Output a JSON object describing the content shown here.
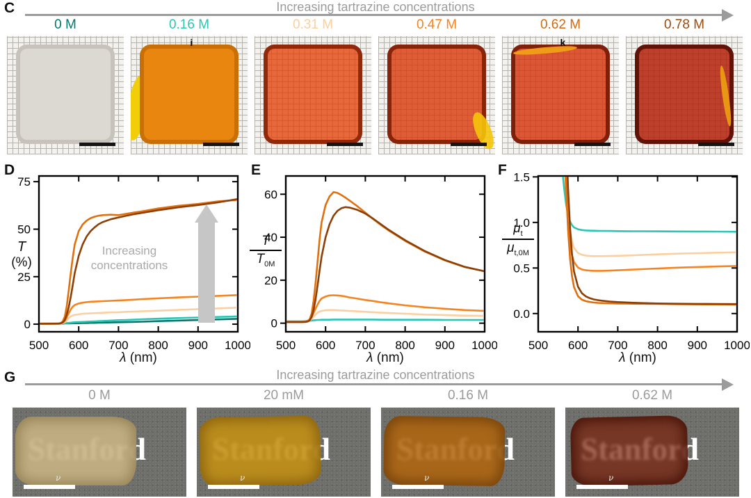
{
  "panel_c": {
    "label": "C",
    "arrow_title": "Increasing tartrazine concentrations",
    "samples": [
      {
        "conc": "0 M",
        "color": "#00786d",
        "fill": "#dcd8d2",
        "edge": "#c7c3bc",
        "mark": "",
        "blob": ""
      },
      {
        "conc": "0.16 M",
        "color": "#2cc4b4",
        "fill": "#e8860f",
        "edge": "#c96f08",
        "mark": "i",
        "blob": "#f2cd0a"
      },
      {
        "conc": "0.31 M",
        "color": "#fbcfa0",
        "fill": "rgba(225,65,8,0.78)",
        "edge": "rgba(130,30,2,0.85)",
        "mark": "",
        "blob": ""
      },
      {
        "conc": "0.47 M",
        "color": "#f5831f",
        "fill": "rgba(218,55,8,0.80)",
        "edge": "rgba(120,26,2,0.85)",
        "mark": "",
        "blob": "#f5c50a"
      },
      {
        "conc": "0.62 M",
        "color": "#d2690f",
        "fill": "rgba(214,48,8,0.80)",
        "edge": "rgba(110,22,2,0.85)",
        "mark": "k",
        "blob": "#f0a018"
      },
      {
        "conc": "0.78 M",
        "color": "#9c4a0e",
        "fill": "rgba(178,30,6,0.84)",
        "edge": "rgba(85,14,2,0.90)",
        "mark": "",
        "blob": "#eb9b12"
      }
    ]
  },
  "chart_data": [
    {
      "id": "D",
      "type": "line",
      "panel_label": "D",
      "xlabel_sym": "λ",
      "xlabel_unit": " (nm)",
      "ylabel_line1": "T",
      "ylabel_line2": "(%)",
      "annotation": "Increasing concentrations",
      "xlim": [
        500,
        1000
      ],
      "ylim": [
        -4,
        78
      ],
      "xticks": [
        {
          "v": 500,
          "t": "500"
        },
        {
          "v": 600,
          "t": "600"
        },
        {
          "v": 700,
          "t": "700"
        },
        {
          "v": 800,
          "t": "800"
        },
        {
          "v": 900,
          "t": "900"
        },
        {
          "v": 1000,
          "t": "1000"
        }
      ],
      "yticks": [
        {
          "v": 0,
          "t": "0"
        },
        {
          "v": 25,
          "t": "25"
        },
        {
          "v": 50,
          "t": "50"
        },
        {
          "v": 75,
          "t": "75"
        }
      ],
      "x": [
        500,
        540,
        550,
        555,
        560,
        565,
        570,
        575,
        580,
        585,
        590,
        600,
        610,
        620,
        630,
        640,
        650,
        660,
        680,
        700,
        720,
        740,
        760,
        800,
        850,
        900,
        950,
        1000
      ],
      "series": [
        {
          "name": "0 M",
          "color": "#00786d",
          "y": [
            0.3,
            0.3,
            0.3,
            0.3,
            0.3,
            0.4,
            0.4,
            0.4,
            0.4,
            0.5,
            0.5,
            0.5,
            0.6,
            0.6,
            0.7,
            0.7,
            0.8,
            0.8,
            0.9,
            1.0,
            1.1,
            1.2,
            1.3,
            1.6,
            1.9,
            2.2,
            2.5,
            2.8
          ]
        },
        {
          "name": "0.16 M",
          "color": "#2cc4b4",
          "y": [
            0.4,
            0.4,
            0.4,
            0.5,
            0.5,
            0.6,
            0.6,
            0.7,
            0.8,
            0.9,
            1.0,
            1.1,
            1.2,
            1.3,
            1.4,
            1.5,
            1.6,
            1.7,
            1.9,
            2.1,
            2.2,
            2.4,
            2.6,
            2.9,
            3.2,
            3.5,
            3.8,
            4.1
          ]
        },
        {
          "name": "0.31 M",
          "color": "#fbcfa0",
          "y": [
            0.2,
            0.2,
            0.3,
            0.3,
            0.5,
            1.0,
            2.0,
            3.2,
            4.1,
            4.6,
            4.9,
            5.2,
            5.5,
            5.6,
            5.7,
            5.8,
            5.9,
            6.0,
            6.2,
            6.3,
            6.5,
            6.6,
            6.8,
            7.1,
            7.5,
            7.9,
            8.3,
            8.7
          ]
        },
        {
          "name": "0.47 M",
          "color": "#f5831f",
          "y": [
            0.2,
            0.3,
            0.3,
            0.4,
            0.8,
            1.8,
            3.6,
            5.8,
            7.8,
            9.2,
            10.1,
            10.9,
            11.3,
            11.6,
            11.8,
            11.9,
            12.0,
            12.1,
            12.3,
            12.5,
            12.7,
            12.9,
            13.2,
            13.6,
            14.1,
            14.5,
            14.9,
            15.3
          ]
        },
        {
          "name": "0.62 M",
          "color": "#e0700e",
          "y": [
            0.2,
            0.3,
            0.4,
            0.6,
            1.5,
            4.0,
            9.5,
            18,
            27,
            35,
            42,
            49,
            52.5,
            54.5,
            55.8,
            56.6,
            57.1,
            57.4,
            57.6,
            57.4,
            58.1,
            58.8,
            59.4,
            60.9,
            62.3,
            63.3,
            64.6,
            65.4
          ]
        },
        {
          "name": "0.78 M",
          "color": "#8e3f05",
          "y": [
            0.2,
            0.3,
            0.3,
            0.5,
            0.9,
            2.2,
            5.0,
            9.0,
            14.5,
            20.5,
            27,
            36,
            42,
            46.2,
            49,
            51,
            52.6,
            53.7,
            55.2,
            56.2,
            57.1,
            57.9,
            58.6,
            60.0,
            61.5,
            62.7,
            64.1,
            65.9
          ]
        }
      ]
    },
    {
      "id": "E",
      "type": "line",
      "panel_label": "E",
      "xlabel_sym": "λ",
      "xlabel_unit": " (nm)",
      "ylabel_num": "T",
      "ylabel_num_sub": "",
      "ylabel_den": "T",
      "ylabel_den_sub": "0M",
      "xlim": [
        500,
        1000
      ],
      "ylim": [
        -4,
        68.5
      ],
      "xticks": [
        {
          "v": 500,
          "t": "500"
        },
        {
          "v": 600,
          "t": "600"
        },
        {
          "v": 700,
          "t": "700"
        },
        {
          "v": 800,
          "t": "800"
        },
        {
          "v": 900,
          "t": "900"
        },
        {
          "v": 1000,
          "t": "1000"
        }
      ],
      "yticks": [
        {
          "v": 0,
          "t": "0"
        },
        {
          "v": 20,
          "t": "20"
        },
        {
          "v": 40,
          "t": "40"
        },
        {
          "v": 60,
          "t": "60"
        }
      ],
      "x": [
        500,
        540,
        550,
        555,
        560,
        565,
        570,
        575,
        580,
        585,
        590,
        600,
        610,
        620,
        630,
        640,
        650,
        660,
        680,
        700,
        720,
        740,
        760,
        800,
        850,
        900,
        950,
        1000
      ],
      "series": [
        {
          "name": "0.16 M",
          "color": "#2cc4b4",
          "y": [
            0.9,
            0.9,
            1.0,
            1.0,
            1.1,
            1.2,
            1.3,
            1.4,
            1.5,
            1.5,
            1.6,
            1.6,
            1.6,
            1.7,
            1.7,
            1.7,
            1.7,
            1.7,
            1.7,
            1.7,
            1.7,
            1.6,
            1.6,
            1.6,
            1.6,
            1.5,
            1.5,
            1.5
          ]
        },
        {
          "name": "0.31 M",
          "color": "#fbcfa0",
          "y": [
            0.8,
            0.8,
            0.9,
            1.0,
            1.3,
            2.0,
            3.1,
            4.1,
            4.9,
            5.4,
            5.7,
            6.0,
            6.1,
            6.1,
            6.0,
            5.9,
            5.8,
            5.7,
            5.5,
            5.3,
            5.1,
            4.9,
            4.7,
            4.4,
            4.0,
            3.8,
            3.5,
            3.4
          ]
        },
        {
          "name": "0.47 M",
          "color": "#f5831f",
          "y": [
            0.8,
            0.8,
            0.9,
            1.1,
            1.6,
            2.9,
            4.7,
            6.8,
            8.8,
            10.4,
            11.5,
            12.4,
            12.9,
            13.0,
            12.9,
            12.7,
            12.4,
            12.0,
            11.4,
            10.8,
            10.3,
            9.7,
            9.2,
            8.3,
            7.4,
            6.7,
            6.1,
            5.7
          ]
        },
        {
          "name": "0.62 M",
          "color": "#e0700e",
          "y": [
            0.5,
            0.5,
            0.6,
            0.9,
            1.8,
            4.5,
            10.5,
            19,
            29,
            39,
            47,
            55,
            59,
            61,
            60.6,
            59.6,
            58.4,
            57.1,
            54.4,
            51.4,
            48.4,
            45.6,
            43.0,
            38.3,
            33.3,
            29.2,
            26.1,
            24.2
          ]
        },
        {
          "name": "0.78 M",
          "color": "#8e3f05",
          "y": [
            0.5,
            0.5,
            0.6,
            0.8,
            1.3,
            2.9,
            6.2,
            11.2,
            17.8,
            24.5,
            31,
            40,
            46,
            50,
            52.3,
            53.5,
            54.0,
            53.8,
            52.7,
            51.0,
            48.6,
            45.9,
            43.3,
            38.6,
            33.5,
            29.4,
            26.2,
            24.1
          ]
        }
      ]
    },
    {
      "id": "F",
      "type": "line",
      "panel_label": "F",
      "xlabel_sym": "λ",
      "xlabel_unit": " (nm)",
      "ylabel_num": "μ",
      "ylabel_num_sub": "t",
      "ylabel_den": "μ",
      "ylabel_den_sub": "t,0M",
      "xlim": [
        500,
        1000
      ],
      "ylim": [
        -0.2,
        1.51
      ],
      "xticks": [
        {
          "v": 500,
          "t": "500"
        },
        {
          "v": 600,
          "t": "600"
        },
        {
          "v": 700,
          "t": "700"
        },
        {
          "v": 800,
          "t": "800"
        },
        {
          "v": 900,
          "t": "900"
        },
        {
          "v": 1000,
          "t": "1000"
        }
      ],
      "yticks": [
        {
          "v": 0,
          "t": "0.0"
        },
        {
          "v": 0.5,
          "t": "0.5"
        },
        {
          "v": 1,
          "t": "1.0"
        },
        {
          "v": 1.5,
          "t": "1.5"
        }
      ],
      "x": [
        500,
        540,
        550,
        555,
        560,
        565,
        570,
        575,
        580,
        585,
        590,
        600,
        610,
        620,
        630,
        640,
        650,
        660,
        680,
        700,
        720,
        740,
        760,
        800,
        850,
        900,
        950,
        1000
      ],
      "series": [
        {
          "name": "0.16 M",
          "color": "#2cc4b4",
          "y": [
            3.2,
            2.4,
            2.05,
            1.85,
            1.6,
            1.38,
            1.2,
            1.08,
            1.01,
            0.97,
            0.945,
            0.925,
            0.916,
            0.912,
            0.91,
            0.909,
            0.908,
            0.907,
            0.906,
            0.905,
            0.904,
            0.903,
            0.903,
            0.902,
            0.901,
            0.9,
            0.899,
            0.898
          ]
        },
        {
          "name": "0.31 M",
          "color": "#fbcfa0",
          "y": [
            5,
            4.2,
            3.6,
            3.2,
            2.6,
            2.0,
            1.5,
            1.14,
            0.91,
            0.79,
            0.72,
            0.665,
            0.645,
            0.636,
            0.632,
            0.63,
            0.63,
            0.63,
            0.632,
            0.634,
            0.637,
            0.64,
            0.643,
            0.65,
            0.657,
            0.663,
            0.668,
            0.672
          ]
        },
        {
          "name": "0.47 M",
          "color": "#f5831f",
          "y": [
            5,
            4.2,
            3.6,
            3.2,
            2.6,
            1.9,
            1.33,
            0.96,
            0.76,
            0.64,
            0.565,
            0.505,
            0.484,
            0.475,
            0.471,
            0.469,
            0.469,
            0.469,
            0.471,
            0.475,
            0.479,
            0.483,
            0.487,
            0.495,
            0.504,
            0.511,
            0.517,
            0.522
          ]
        },
        {
          "name": "0.62 M",
          "color": "#e0700e",
          "y": [
            5,
            4.5,
            4.0,
            3.6,
            3.0,
            2.2,
            1.45,
            0.92,
            0.6,
            0.41,
            0.29,
            0.19,
            0.152,
            0.136,
            0.127,
            0.121,
            0.117,
            0.115,
            0.112,
            0.11,
            0.109,
            0.108,
            0.107,
            0.105,
            0.103,
            0.101,
            0.1,
            0.098
          ]
        },
        {
          "name": "0.78 M",
          "color": "#8e3f05",
          "y": [
            5,
            4.6,
            4.2,
            3.9,
            3.4,
            2.7,
            2.0,
            1.38,
            0.94,
            0.65,
            0.46,
            0.295,
            0.222,
            0.188,
            0.168,
            0.155,
            0.147,
            0.141,
            0.132,
            0.126,
            0.122,
            0.118,
            0.115,
            0.111,
            0.108,
            0.106,
            0.105,
            0.104
          ]
        }
      ]
    }
  ],
  "panel_g": {
    "label": "G",
    "arrow_title": "Increasing tartrazine concentrations",
    "word": "Stanford",
    "nu_mark": "ν",
    "samples": [
      {
        "conc": "0 M",
        "tissue_fill": "rgba(200,180,132,0.90)",
        "tissue_edge": "rgba(120,100,55,0.55)"
      },
      {
        "conc": "20 mM",
        "tissue_fill": "rgba(196,144,18,0.88)",
        "tissue_edge": "rgba(110,75,5,0.60)"
      },
      {
        "conc": "0.16 M",
        "tissue_fill": "rgba(178,100,10,0.85)",
        "tissue_edge": "rgba(95,50,4,0.65)"
      },
      {
        "conc": "0.62 M",
        "tissue_fill": "rgba(122,28,4,0.68)",
        "tissue_edge": "rgba(60,12,2,0.80)"
      }
    ]
  }
}
